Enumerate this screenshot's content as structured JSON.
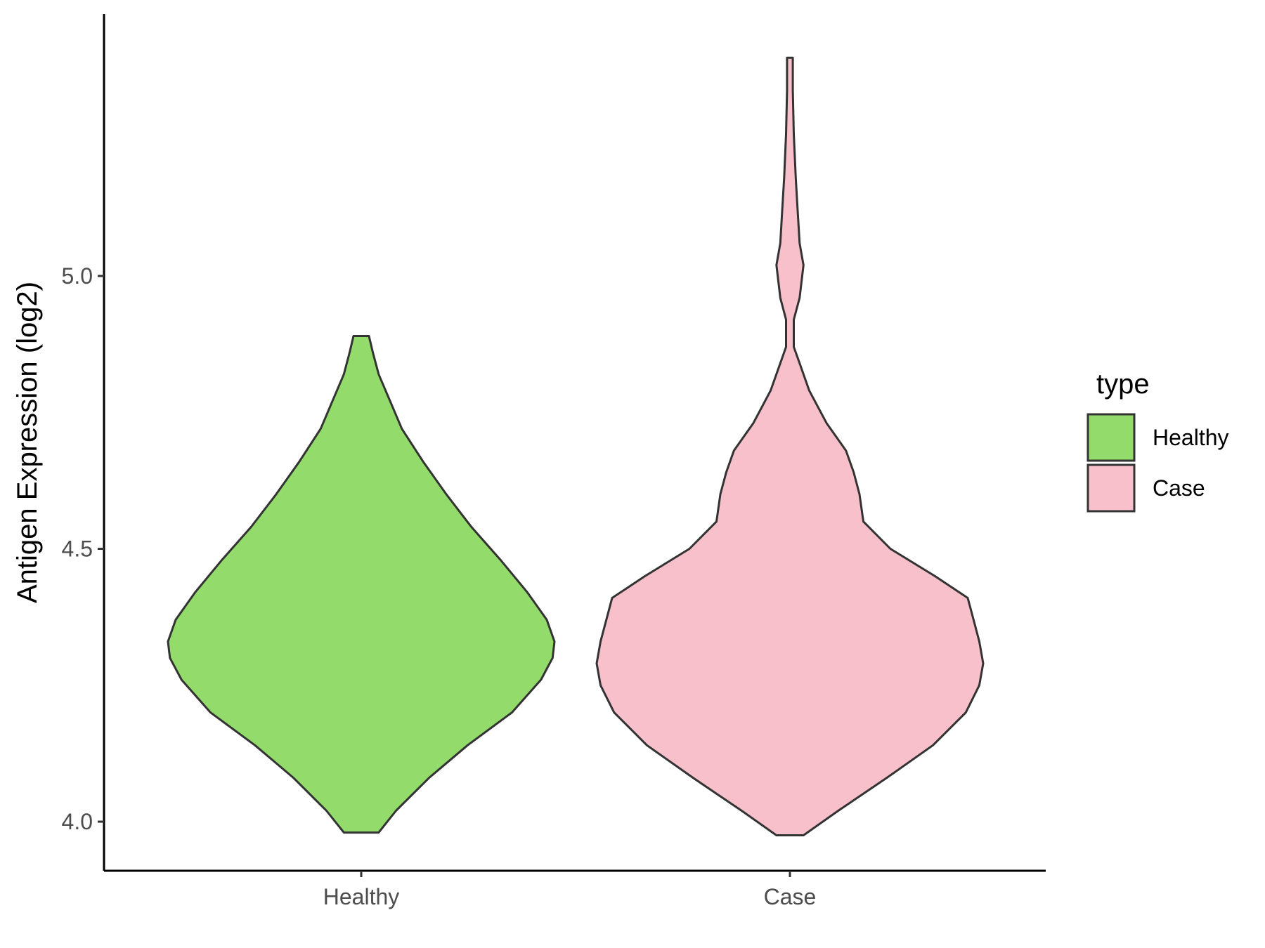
{
  "chart_data": {
    "type": "violin",
    "title": "",
    "xlabel": "",
    "ylabel": "Antigen Expression (log2)",
    "categories": [
      "Healthy",
      "Case"
    ],
    "ylim": [
      3.91,
      5.48
    ],
    "yticks": [
      {
        "value": 4.0,
        "label": "4.0"
      },
      {
        "value": 4.5,
        "label": "4.5"
      },
      {
        "value": 5.0,
        "label": "5.0"
      }
    ],
    "grid": false,
    "legend": {
      "title": "type",
      "position": "right",
      "entries": [
        {
          "label": "Healthy",
          "color": "#93dc6b"
        },
        {
          "label": "Case",
          "color": "#f8c0cb"
        }
      ]
    },
    "outline_color": "#333333",
    "series": [
      {
        "category": "Healthy",
        "color": "#93dc6b",
        "min": 3.98,
        "max": 4.89,
        "density_profile": [
          [
            3.98,
            0.09
          ],
          [
            4.02,
            0.18
          ],
          [
            4.08,
            0.35
          ],
          [
            4.14,
            0.55
          ],
          [
            4.2,
            0.78
          ],
          [
            4.26,
            0.93
          ],
          [
            4.3,
            0.99
          ],
          [
            4.33,
            1.0
          ],
          [
            4.37,
            0.96
          ],
          [
            4.42,
            0.86
          ],
          [
            4.48,
            0.72
          ],
          [
            4.54,
            0.57
          ],
          [
            4.6,
            0.44
          ],
          [
            4.66,
            0.32
          ],
          [
            4.72,
            0.21
          ],
          [
            4.77,
            0.15
          ],
          [
            4.82,
            0.09
          ],
          [
            4.86,
            0.06
          ],
          [
            4.89,
            0.04
          ]
        ]
      },
      {
        "category": "Case",
        "color": "#f8c0cb",
        "min": 3.975,
        "max": 5.4,
        "density_profile": [
          [
            3.975,
            0.07
          ],
          [
            4.02,
            0.25
          ],
          [
            4.08,
            0.5
          ],
          [
            4.14,
            0.74
          ],
          [
            4.2,
            0.91
          ],
          [
            4.25,
            0.98
          ],
          [
            4.29,
            1.0
          ],
          [
            4.33,
            0.98
          ],
          [
            4.37,
            0.95
          ],
          [
            4.41,
            0.92
          ],
          [
            4.45,
            0.75
          ],
          [
            4.5,
            0.52
          ],
          [
            4.55,
            0.38
          ],
          [
            4.6,
            0.36
          ],
          [
            4.64,
            0.33
          ],
          [
            4.68,
            0.29
          ],
          [
            4.73,
            0.19
          ],
          [
            4.79,
            0.1
          ],
          [
            4.84,
            0.05
          ],
          [
            4.87,
            0.02
          ],
          [
            4.92,
            0.02
          ],
          [
            4.96,
            0.05
          ],
          [
            5.02,
            0.07
          ],
          [
            5.06,
            0.05
          ],
          [
            5.12,
            0.04
          ],
          [
            5.18,
            0.03
          ],
          [
            5.26,
            0.02
          ],
          [
            5.34,
            0.015
          ],
          [
            5.4,
            0.015
          ]
        ]
      }
    ]
  }
}
